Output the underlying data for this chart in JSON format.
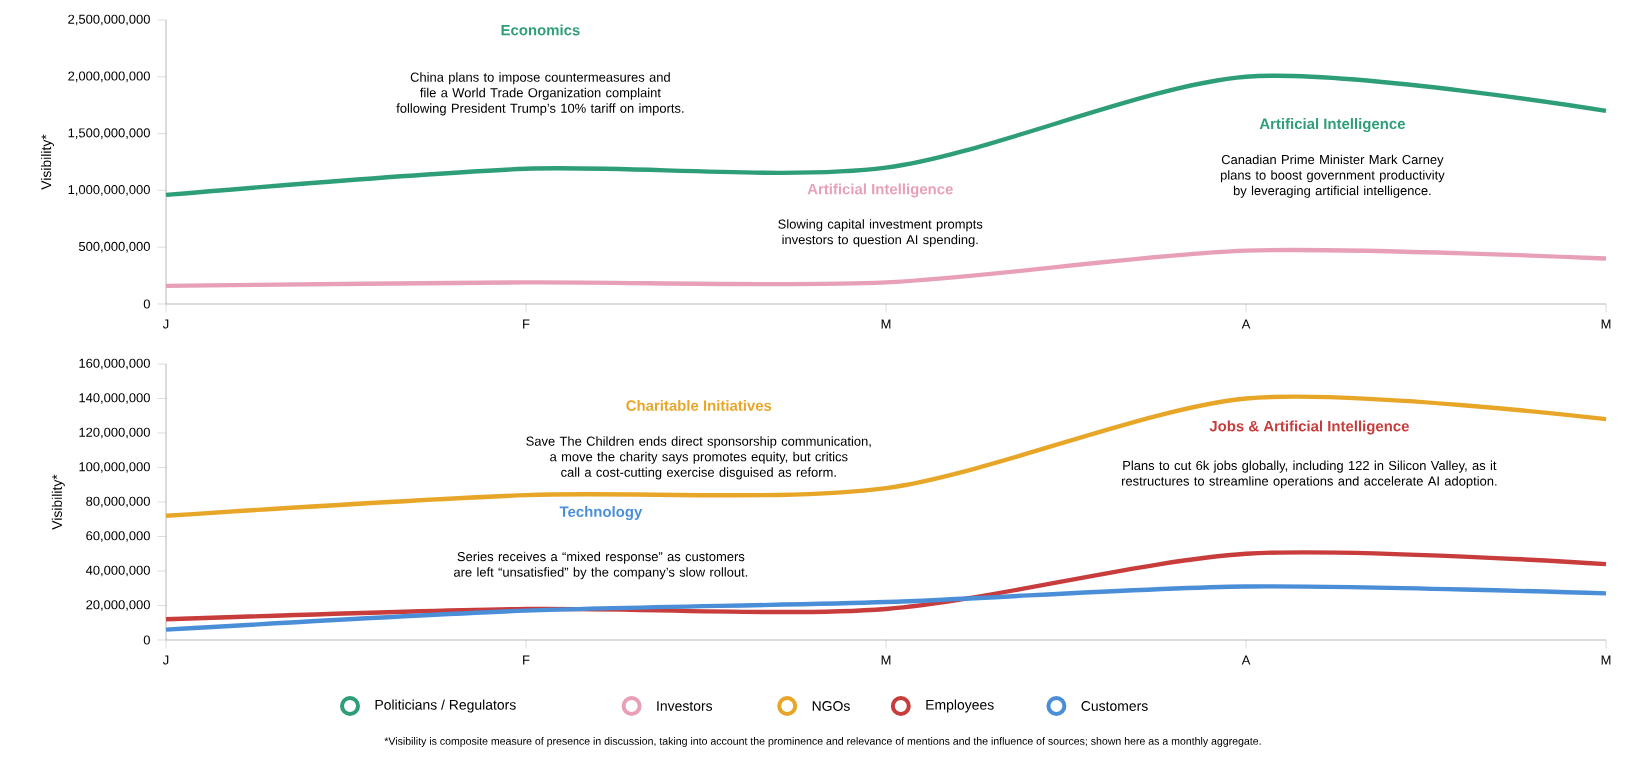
{
  "chart_data": [
    {
      "type": "line",
      "ylabel": "Visibility*",
      "categories": [
        "J",
        "F",
        "M",
        "A",
        "M"
      ],
      "ylim": [
        0,
        2500000000
      ],
      "yticks": [
        {
          "value": 0,
          "label": "0"
        },
        {
          "value": 500000000,
          "label": "500,000,000"
        },
        {
          "value": 1000000000,
          "label": "1,000,000,000"
        },
        {
          "value": 1500000000,
          "label": "1,500,000,000"
        },
        {
          "value": 2000000000,
          "label": "2,000,000,000"
        },
        {
          "value": 2500000000,
          "label": "2,500,000,000"
        }
      ],
      "series": [
        {
          "name": "Politicians / Regulators",
          "color": "#2e9e78",
          "values": [
            960000000,
            1190000000,
            1200000000,
            2000000000,
            1700000000
          ]
        },
        {
          "name": "Investors",
          "color": "#e8a0b8",
          "values": [
            160000000,
            190000000,
            190000000,
            470000000,
            400000000
          ]
        }
      ],
      "legend": "bottom",
      "annotations": [
        "Economics",
        "China plans to impose countermeasures and file a World Trade Organization complaint following President Trump’s 10% tariff on imports.",
        "Artificial Intelligence",
        "Slowing capital investment prompts investors to question AI spending.",
        "Artificial Intelligence",
        "Canadian Prime Minister Mark Carney plans to boost government productivity by leveraging artificial intelligence."
      ]
    },
    {
      "type": "line",
      "ylabel": "Visibility*",
      "categories": [
        "J",
        "F",
        "M",
        "A",
        "M"
      ],
      "ylim": [
        0,
        160000000
      ],
      "yticks": [
        {
          "value": 0,
          "label": "0"
        },
        {
          "value": 20000000,
          "label": "20,000,000"
        },
        {
          "value": 40000000,
          "label": "40,000,000"
        },
        {
          "value": 60000000,
          "label": "60,000,000"
        },
        {
          "value": 80000000,
          "label": "80,000,000"
        },
        {
          "value": 100000000,
          "label": "100,000,000"
        },
        {
          "value": 120000000,
          "label": "120,000,000"
        },
        {
          "value": 140000000,
          "label": "140,000,000"
        },
        {
          "value": 160000000,
          "label": "160,000,000"
        }
      ],
      "series": [
        {
          "name": "NGOs",
          "color": "#e8a628",
          "values": [
            72000000,
            84000000,
            88000000,
            140000000,
            128000000
          ]
        },
        {
          "name": "Employees",
          "color": "#c83c3c",
          "values": [
            12000000,
            18000000,
            18000000,
            50000000,
            44000000
          ]
        },
        {
          "name": "Customers",
          "color": "#4a8ed8",
          "values": [
            6000000,
            17000000,
            22000000,
            31000000,
            27000000
          ]
        }
      ],
      "legend": "bottom",
      "annotations": [
        "Charitable Initiatives",
        "Save The Children ends direct sponsorship communication, a move the charity says promotes equity, but critics call a cost-cutting exercise disguised as reform.",
        "Jobs & Artificial Intelligence",
        "Plans to cut 6k jobs globally, including 122 in Silicon Valley, as it restructures to streamline operations and accelerate AI adoption.",
        "Technology",
        "Series receives a “mixed response” as customers are left “unsatisfied” by the company’s slow rollout.",
        "*Visibility is composite measure of presence in discussion, taking into account the prominence and relevance of mentions and the influence of sources; shown here as a monthly aggregate."
      ]
    }
  ]
}
